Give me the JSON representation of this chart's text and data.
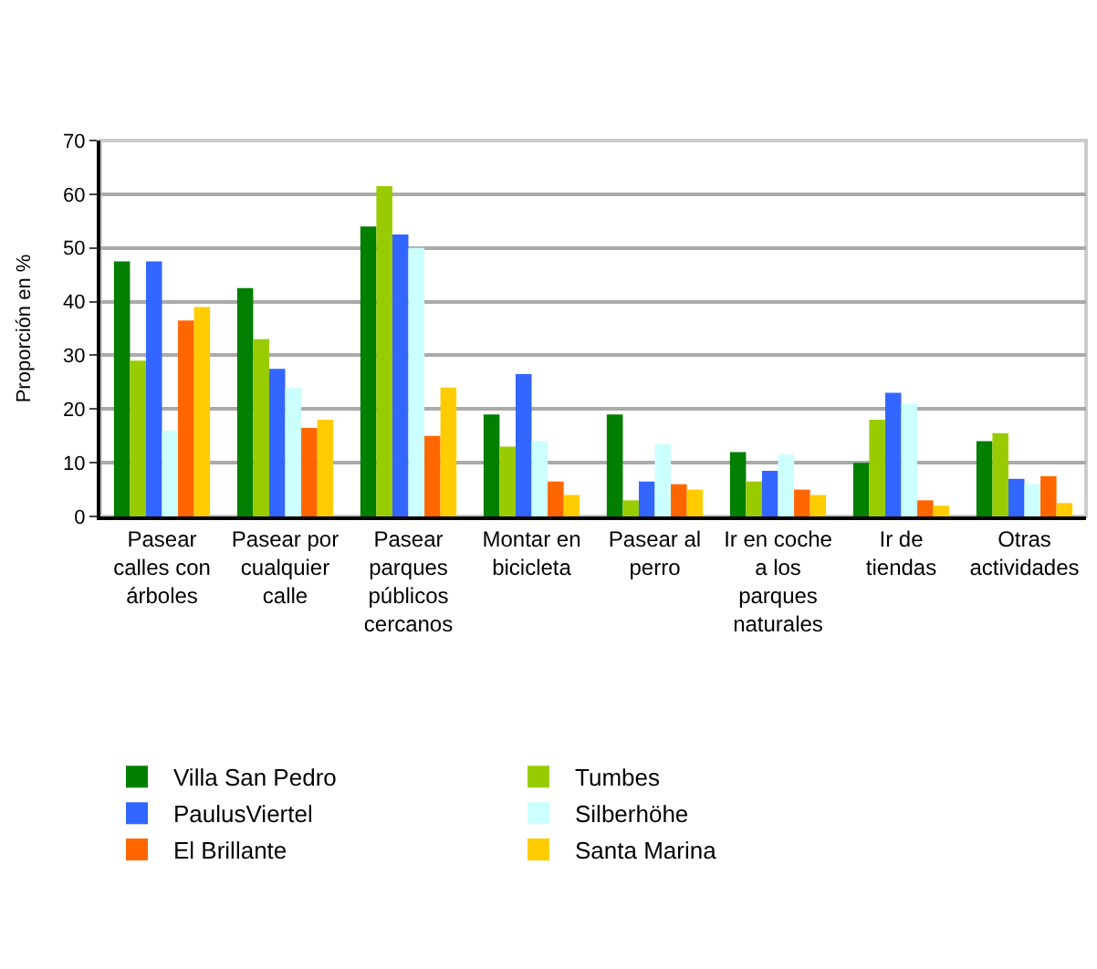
{
  "chart_data": {
    "type": "bar",
    "ylabel": "Proporción en %",
    "categories": [
      "Pasear calles con árboles",
      "Pasear por cualquier calle",
      "Pasear parques públicos cercanos",
      "Montar en bicicleta",
      "Pasear al perro",
      "Ir en coche a los parques naturales",
      "Ir de tiendas",
      "Otras actividades"
    ],
    "series": [
      {
        "name": "Villa San Pedro",
        "color": "#007f00",
        "values": [
          47.5,
          42.5,
          54,
          19,
          19,
          12,
          10,
          14
        ]
      },
      {
        "name": "Tumbes",
        "color": "#99cc00",
        "values": [
          29,
          33,
          61.5,
          13,
          3,
          6.5,
          18,
          15.5
        ]
      },
      {
        "name": "PaulusViertel",
        "color": "#3366ff",
        "values": [
          47.5,
          27.5,
          52.5,
          26.5,
          6.5,
          8.5,
          23,
          7
        ]
      },
      {
        "name": "Silberhöhe",
        "color": "#ccffff",
        "values": [
          16,
          24,
          50,
          14,
          13.5,
          11.5,
          21,
          6
        ]
      },
      {
        "name": "El Brillante",
        "color": "#ff6600",
        "values": [
          36.5,
          16.5,
          15,
          6.5,
          6,
          5,
          3,
          7.5
        ]
      },
      {
        "name": "Santa Marina",
        "color": "#ffcc00",
        "values": [
          39,
          18,
          24,
          4,
          5,
          4,
          2,
          2.5
        ]
      }
    ],
    "ylim": [
      0,
      70
    ],
    "yticks": [
      0,
      10,
      20,
      30,
      40,
      50,
      60,
      70
    ],
    "grid": "y",
    "legend": "bottom"
  }
}
